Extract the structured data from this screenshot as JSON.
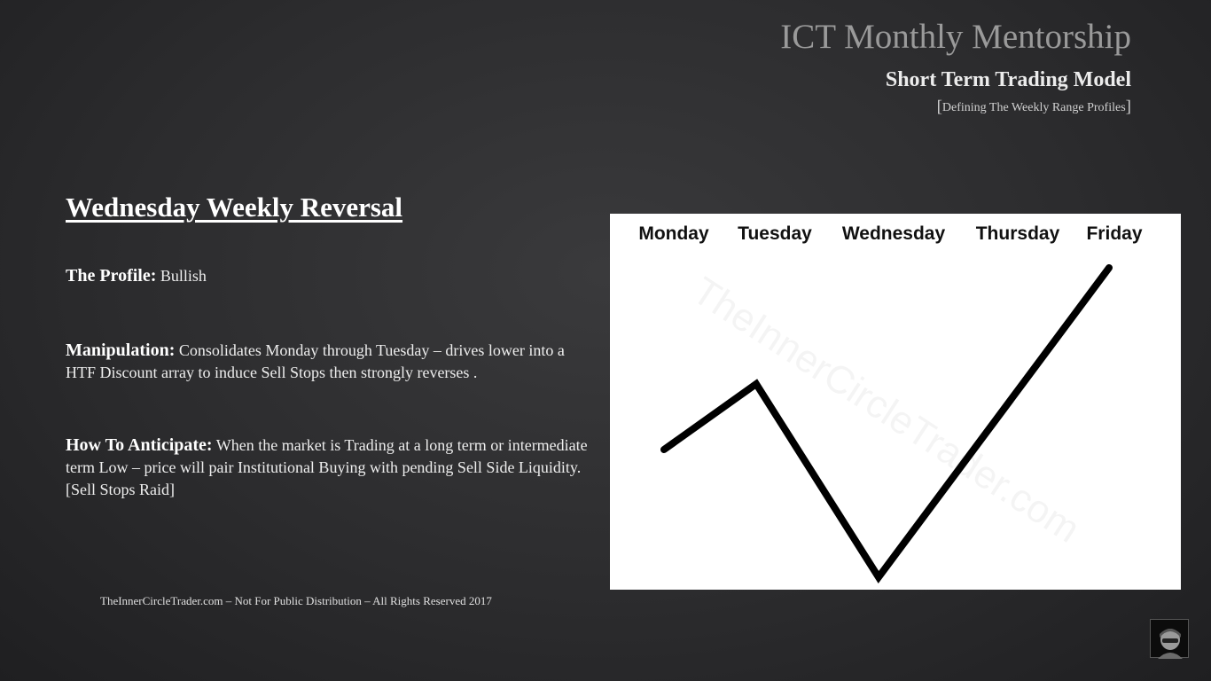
{
  "header": {
    "title": "ICT Monthly Mentorship",
    "subtitle": "Short Term Trading Model",
    "note": "Defining The Weekly Range Profiles"
  },
  "content": {
    "heading": "Wednesday Weekly Reversal",
    "profile_label": "The Profile:",
    "profile_text": "Bullish",
    "manipulation_label": "Manipulation:",
    "manipulation_text": "Consolidates Monday through Tuesday – drives lower into a HTF Discount array to induce Sell Stops then strongly reverses .",
    "anticipate_label": "How To Anticipate:",
    "anticipate_text": "When the market is Trading at a long term or intermediate term Low – price will pair Institutional Buying with pending Sell Side Liquidity. [Sell Stops Raid]"
  },
  "footer": {
    "text": "TheInnerCircleTrader.com – Not For Public Distribution – All Rights Reserved 2017"
  },
  "diagram": {
    "days": [
      "Monday",
      "Tuesday",
      "Wednesday",
      "Thursday",
      "Friday"
    ],
    "watermark": "TheInnerCircleTrader.com",
    "line_color": "#000000"
  }
}
